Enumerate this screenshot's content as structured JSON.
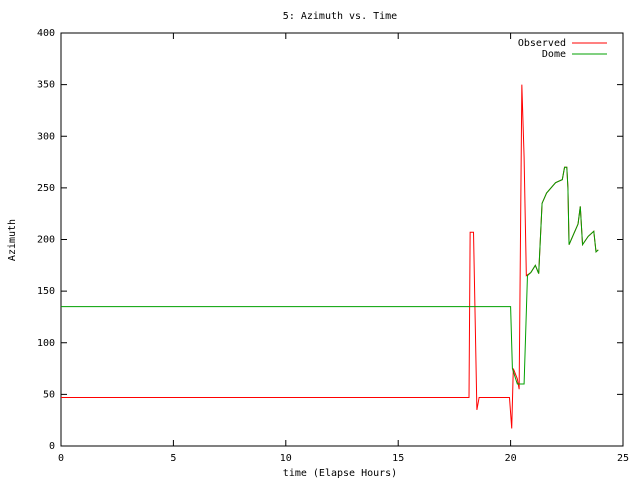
{
  "chart_data": {
    "type": "line",
    "title": "5: Azimuth vs. Time",
    "x_label": "time (Elapse Hours)",
    "y_label": "Azimuth",
    "xlim": [
      0,
      25
    ],
    "xticks": [
      0,
      5,
      10,
      15,
      20,
      25
    ],
    "ylim": [
      0,
      400
    ],
    "yticks": [
      0,
      50,
      100,
      150,
      200,
      250,
      300,
      350,
      400
    ],
    "legend": "upper right",
    "series": [
      {
        "name": "Observed",
        "color": "#ff0000",
        "x": [
          0,
          18.15,
          18.2,
          18.35,
          18.5,
          18.6,
          19.95,
          20.05,
          20.12,
          20.3,
          20.38,
          20.5,
          20.6,
          20.7,
          20.9,
          21.1,
          21.25,
          21.4,
          21.6,
          22.0,
          22.3,
          22.4,
          22.5,
          22.55,
          22.6,
          22.8,
          23.0,
          23.1,
          23.2,
          23.45,
          23.7,
          23.8,
          23.9
        ],
        "values": [
          47,
          47,
          207,
          207,
          35,
          47,
          47,
          17,
          75,
          65,
          55,
          350,
          280,
          165,
          168,
          175,
          167,
          235,
          245,
          255,
          258,
          270,
          270,
          250,
          195,
          205,
          215,
          232,
          195,
          203,
          208,
          188,
          190
        ]
      },
      {
        "name": "Dome",
        "color": "#00a000",
        "x": [
          0,
          20.0,
          20.08,
          20.3,
          20.6,
          20.75,
          20.9,
          21.1,
          21.25,
          21.4,
          21.6,
          22.0,
          22.3,
          22.4,
          22.5,
          22.55,
          22.6,
          22.8,
          23.0,
          23.1,
          23.2,
          23.45,
          23.7,
          23.8,
          23.9
        ],
        "values": [
          135,
          135,
          75,
          60,
          60,
          165,
          168,
          175,
          167,
          235,
          245,
          255,
          258,
          270,
          270,
          250,
          195,
          205,
          215,
          232,
          195,
          203,
          208,
          188,
          190
        ]
      }
    ]
  }
}
